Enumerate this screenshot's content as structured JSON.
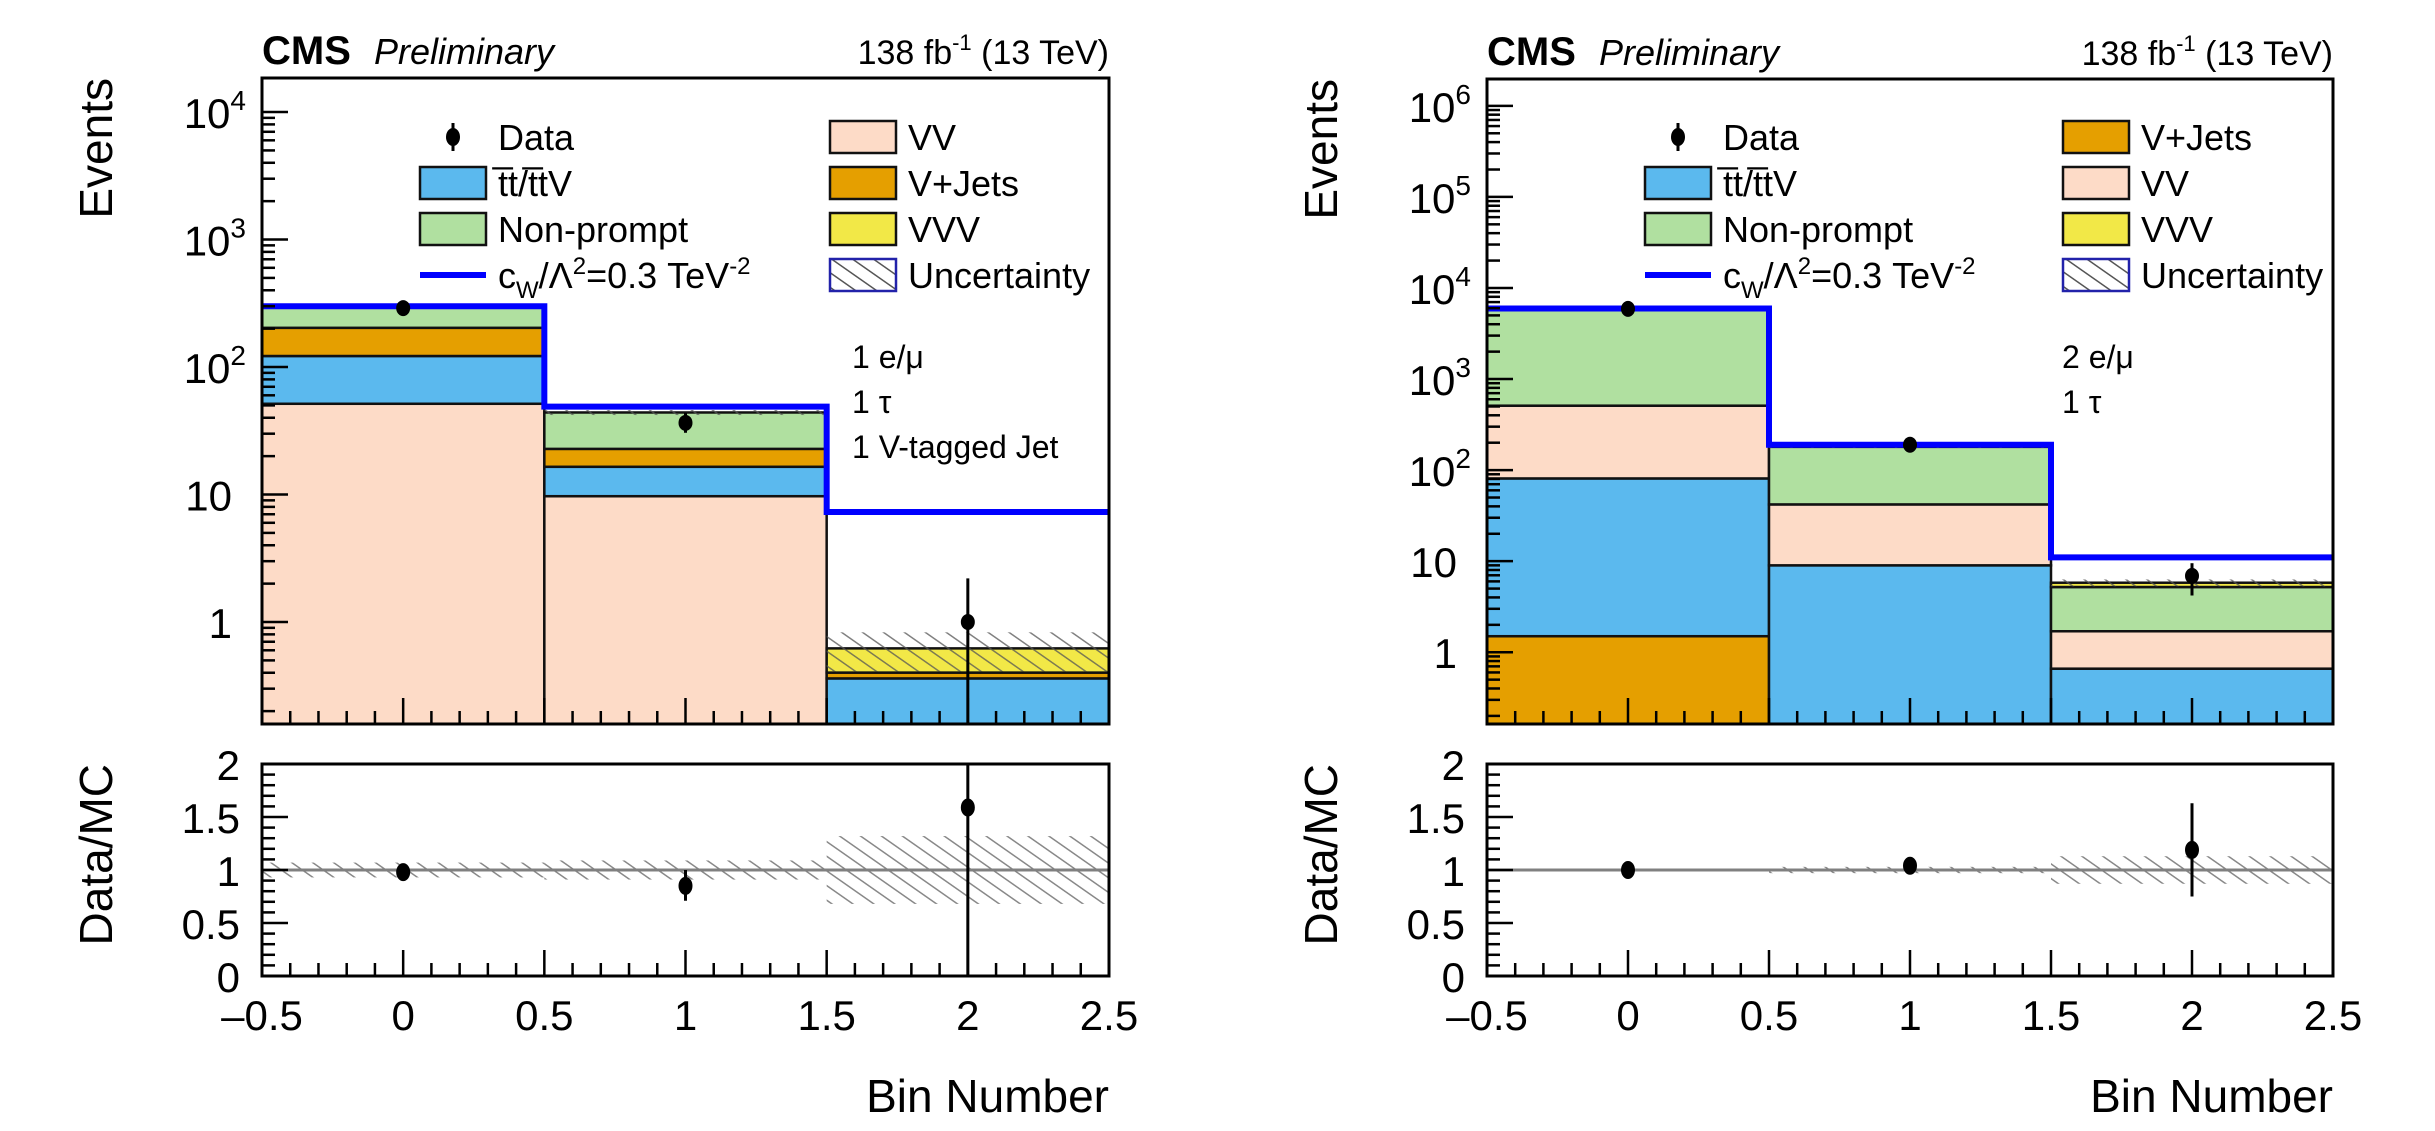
{
  "chart_data": [
    {
      "type": "bar",
      "subtype": "stacked-histogram-with-ratio",
      "title_left": "CMS",
      "title_extra": "Preliminary",
      "lumi_label": "138 fb",
      "lumi_exponent": "-1",
      "energy_label": "(13 TeV)",
      "ylabel": "Events",
      "ratio_ylabel": "Data/MC",
      "xlabel": "Bin Number",
      "yscale": "log",
      "ylim": [
        0.16,
        18500
      ],
      "ytick_labels": [
        {
          "value": 1,
          "text": "1"
        },
        {
          "value": 10,
          "text": "10"
        },
        {
          "value": 100,
          "text": "10",
          "sup": "2"
        },
        {
          "value": 1000,
          "text": "10",
          "sup": "3"
        },
        {
          "value": 10000,
          "text": "10",
          "sup": "4"
        }
      ],
      "xlim": [
        -0.5,
        2.5
      ],
      "xticks": [
        "-0.5",
        "0",
        "0.5",
        "1",
        "1.5",
        "2",
        "2.5"
      ],
      "ratio_ylim": [
        0,
        2
      ],
      "ratio_yticks": [
        "0",
        "0.5",
        "1",
        "1.5",
        "2"
      ],
      "bins": [
        0,
        1,
        2
      ],
      "annotations": [
        "1 e/μ",
        "1 τ",
        "1 V-tagged Jet"
      ],
      "legend": {
        "placement": "top",
        "columns": [
          [
            {
              "label": "Data",
              "type": "marker"
            },
            {
              "label": "t̅t/t̅tV",
              "type": "fill",
              "key": "ttbar"
            },
            {
              "label": "Non-prompt",
              "type": "fill",
              "key": "nonprompt"
            },
            {
              "label": "c_W/Λ^2=0.3 TeV^-2",
              "type": "line",
              "key": "signal"
            }
          ],
          [
            {
              "label": "VV",
              "type": "fill",
              "key": "vv"
            },
            {
              "label": "V+Jets",
              "type": "fill",
              "key": "vjets"
            },
            {
              "label": "VVV",
              "type": "fill",
              "key": "vvv"
            },
            {
              "label": "Uncertainty",
              "type": "hatch",
              "key": "unc"
            }
          ]
        ]
      },
      "stack_order": [
        "vv",
        "ttbar",
        "vjets",
        "nonprompt",
        "vvv"
      ],
      "series": [
        {
          "name": "VV",
          "key": "vv",
          "color": "#fddbc7",
          "values": [
            51.5,
            9.7,
            0.001
          ]
        },
        {
          "name": "tt/ttV",
          "key": "ttbar",
          "color": "#5bb9ee",
          "values": [
            70.5,
            6.8,
            0.36
          ]
        },
        {
          "name": "V+Jets",
          "key": "vjets",
          "color": "#e59f00",
          "values": [
            81,
            6.3,
            0.04
          ]
        },
        {
          "name": "Non-prompt",
          "key": "nonprompt",
          "color": "#b0e0a0",
          "values": [
            94,
            21.2,
            0.0
          ]
        },
        {
          "name": "VVV",
          "key": "vvv",
          "color": "#f2e847",
          "values": [
            0.0,
            0.0,
            0.22
          ]
        }
      ],
      "stack_total": [
        297,
        44,
        0.62
      ],
      "uncertainty_up": [
        305,
        46,
        0.83
      ],
      "signal": {
        "name": "c_W/Λ²=0.3 TeV⁻²",
        "color": "#0000ff",
        "values": [
          300,
          48.9,
          7.3
        ]
      },
      "data": {
        "values": [
          290,
          36.5,
          1.0
        ],
        "err_low": [
          17,
          6,
          1.0
        ],
        "err_high": [
          18,
          7,
          1.2
        ]
      },
      "ratio": {
        "values": [
          0.98,
          0.85,
          1.59
        ],
        "err_low": [
          0.03,
          0.14,
          1.59
        ],
        "err_high": [
          0.03,
          0.15,
          1.6
        ],
        "unc": [
          0.07,
          0.09,
          0.32
        ]
      }
    },
    {
      "type": "bar",
      "subtype": "stacked-histogram-with-ratio",
      "title_left": "CMS",
      "title_extra": "Preliminary",
      "lumi_label": "138 fb",
      "lumi_exponent": "-1",
      "energy_label": "(13 TeV)",
      "ylabel": "Events",
      "ratio_ylabel": "Data/MC",
      "xlabel": "Bin Number",
      "yscale": "log",
      "ylim": [
        0.16,
        2000000
      ],
      "ytick_labels": [
        {
          "value": 1,
          "text": "1"
        },
        {
          "value": 10,
          "text": "10"
        },
        {
          "value": 100,
          "text": "10",
          "sup": "2"
        },
        {
          "value": 1000,
          "text": "10",
          "sup": "3"
        },
        {
          "value": 10000,
          "text": "10",
          "sup": "4"
        },
        {
          "value": 100000,
          "text": "10",
          "sup": "5"
        },
        {
          "value": 1000000,
          "text": "10",
          "sup": "6"
        }
      ],
      "xlim": [
        -0.5,
        2.5
      ],
      "xticks": [
        "-0.5",
        "0",
        "0.5",
        "1",
        "1.5",
        "2",
        "2.5"
      ],
      "ratio_ylim": [
        0,
        2
      ],
      "ratio_yticks": [
        "0",
        "0.5",
        "1",
        "1.5",
        "2"
      ],
      "bins": [
        0,
        1,
        2
      ],
      "annotations": [
        "2 e/μ",
        "1 τ"
      ],
      "legend": {
        "placement": "top",
        "columns": [
          [
            {
              "label": "Data",
              "type": "marker"
            },
            {
              "label": "t̅t/t̅tV",
              "type": "fill",
              "key": "ttbar"
            },
            {
              "label": "Non-prompt",
              "type": "fill",
              "key": "nonprompt"
            },
            {
              "label": "c_W/Λ^2=0.3 TeV^-2",
              "type": "line",
              "key": "signal"
            }
          ],
          [
            {
              "label": "V+Jets",
              "type": "fill",
              "key": "vjets"
            },
            {
              "label": "VV",
              "type": "fill",
              "key": "vv"
            },
            {
              "label": "VVV",
              "type": "fill",
              "key": "vvv"
            },
            {
              "label": "Uncertainty",
              "type": "hatch",
              "key": "unc"
            }
          ]
        ]
      },
      "stack_order": [
        "vjets",
        "ttbar",
        "vv",
        "nonprompt",
        "vvv"
      ],
      "series": [
        {
          "name": "V+Jets",
          "key": "vjets",
          "color": "#e59f00",
          "values": [
            1.5,
            0.0,
            0.0
          ]
        },
        {
          "name": "tt/ttV",
          "key": "ttbar",
          "color": "#5bb9ee",
          "values": [
            79.5,
            9.0,
            0.66
          ]
        },
        {
          "name": "VV",
          "key": "vv",
          "color": "#fddbc7",
          "values": [
            429,
            33,
            1.04
          ]
        },
        {
          "name": "Non-prompt",
          "key": "nonprompt",
          "color": "#b0e0a0",
          "values": [
            5390,
            138,
            3.5
          ]
        },
        {
          "name": "VVV",
          "key": "vvv",
          "color": "#f2e847",
          "values": [
            0.0,
            0.0,
            0.6
          ]
        }
      ],
      "stack_total": [
        5900,
        180,
        5.8
      ],
      "uncertainty_up": [
        6000,
        185,
        6.3
      ],
      "signal": {
        "name": "c_W/Λ²=0.3 TeV⁻²",
        "color": "#0000ff",
        "values": [
          5950,
          190,
          11
        ]
      },
      "data": {
        "values": [
          5900,
          190,
          6.9
        ],
        "err_low": [
          80,
          14,
          2.7
        ],
        "err_high": [
          80,
          14,
          2.6
        ]
      },
      "ratio": {
        "values": [
          1.0,
          1.04,
          1.19
        ],
        "err_low": [
          0.01,
          0.04,
          0.44
        ],
        "err_high": [
          0.01,
          0.04,
          0.44
        ],
        "unc": [
          0.01,
          0.03,
          0.13
        ]
      }
    }
  ]
}
